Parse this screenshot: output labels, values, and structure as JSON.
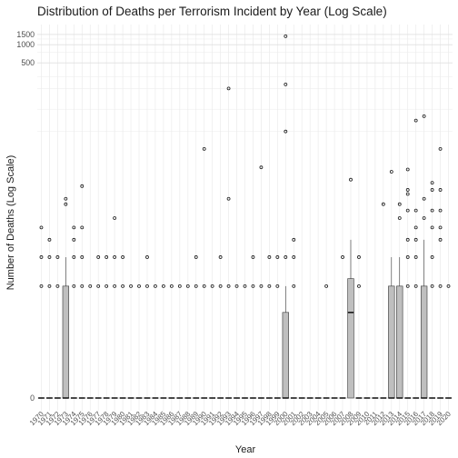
{
  "chart_data": {
    "type": "box",
    "title": "Distribution of Deaths per Terrorism Incident by Year (Log Scale)",
    "xlabel": "Year",
    "ylabel": "Number of Deaths (Log Scale)",
    "y_scale": "log1p",
    "y_ticks": [
      0,
      500,
      1000,
      1500
    ],
    "y_tick_labels": [
      "0",
      "500",
      "1000",
      "1500"
    ],
    "ylim": [
      0,
      1800
    ],
    "grid": true,
    "legend": "none",
    "colors": {
      "box_fill": "#bfbfbf",
      "outline": "#333333",
      "grid": "#ebebeb",
      "background": "#ffffff"
    },
    "categories": [
      "1970",
      "1971",
      "1972",
      "1973",
      "1974",
      "1975",
      "1976",
      "1977",
      "1978",
      "1979",
      "1980",
      "1981",
      "1982",
      "1983",
      "1984",
      "1985",
      "1986",
      "1987",
      "1988",
      "1989",
      "1990",
      "1991",
      "1992",
      "1993",
      "1994",
      "1995",
      "1996",
      "1997",
      "1998",
      "1999",
      "2000",
      "2001",
      "2002",
      "2003",
      "2004",
      "2005",
      "2006",
      "2007",
      "2008",
      "2009",
      "2010",
      "2011",
      "2012",
      "2013",
      "2014",
      "2015",
      "2016",
      "2017",
      "2018",
      "2019",
      "2020"
    ],
    "boxes": [
      {
        "x": "1970",
        "q1": 0,
        "median": 0,
        "q3": 0,
        "whisker_low": 0,
        "whisker_high": 0,
        "outliers": [
          1,
          2,
          4
        ]
      },
      {
        "x": "1971",
        "q1": 0,
        "median": 0,
        "q3": 0,
        "whisker_low": 0,
        "whisker_high": 0,
        "outliers": [
          1,
          2,
          3
        ]
      },
      {
        "x": "1972",
        "q1": 0,
        "median": 0,
        "q3": 0,
        "whisker_low": 0,
        "whisker_high": 0,
        "outliers": [
          1,
          2
        ]
      },
      {
        "x": "1973",
        "q1": 0,
        "median": 0,
        "q3": 1,
        "whisker_low": 0,
        "whisker_high": 2,
        "outliers": [
          7,
          8
        ]
      },
      {
        "x": "1974",
        "q1": 0,
        "median": 0,
        "q3": 0,
        "whisker_low": 0,
        "whisker_high": 0,
        "outliers": [
          1,
          2,
          3,
          4
        ]
      },
      {
        "x": "1975",
        "q1": 0,
        "median": 0,
        "q3": 0,
        "whisker_low": 0,
        "whisker_high": 0,
        "outliers": [
          1,
          2,
          4,
          11
        ]
      },
      {
        "x": "1976",
        "q1": 0,
        "median": 0,
        "q3": 0,
        "whisker_low": 0,
        "whisker_high": 0,
        "outliers": [
          1
        ]
      },
      {
        "x": "1977",
        "q1": 0,
        "median": 0,
        "q3": 0,
        "whisker_low": 0,
        "whisker_high": 0,
        "outliers": [
          1,
          2
        ]
      },
      {
        "x": "1978",
        "q1": 0,
        "median": 0,
        "q3": 0,
        "whisker_low": 0,
        "whisker_high": 0,
        "outliers": [
          1,
          2
        ]
      },
      {
        "x": "1979",
        "q1": 0,
        "median": 0,
        "q3": 0,
        "whisker_low": 0,
        "whisker_high": 0,
        "outliers": [
          1,
          2,
          5
        ]
      },
      {
        "x": "1980",
        "q1": 0,
        "median": 0,
        "q3": 0,
        "whisker_low": 0,
        "whisker_high": 0,
        "outliers": [
          1,
          2
        ]
      },
      {
        "x": "1981",
        "q1": 0,
        "median": 0,
        "q3": 0,
        "whisker_low": 0,
        "whisker_high": 0,
        "outliers": [
          1
        ]
      },
      {
        "x": "1982",
        "q1": 0,
        "median": 0,
        "q3": 0,
        "whisker_low": 0,
        "whisker_high": 0,
        "outliers": [
          1
        ]
      },
      {
        "x": "1983",
        "q1": 0,
        "median": 0,
        "q3": 0,
        "whisker_low": 0,
        "whisker_high": 0,
        "outliers": [
          1,
          2
        ]
      },
      {
        "x": "1984",
        "q1": 0,
        "median": 0,
        "q3": 0,
        "whisker_low": 0,
        "whisker_high": 0,
        "outliers": [
          1
        ]
      },
      {
        "x": "1985",
        "q1": 0,
        "median": 0,
        "q3": 0,
        "whisker_low": 0,
        "whisker_high": 0,
        "outliers": [
          1
        ]
      },
      {
        "x": "1986",
        "q1": 0,
        "median": 0,
        "q3": 0,
        "whisker_low": 0,
        "whisker_high": 0,
        "outliers": [
          1
        ]
      },
      {
        "x": "1987",
        "q1": 0,
        "median": 0,
        "q3": 0,
        "whisker_low": 0,
        "whisker_high": 0,
        "outliers": [
          1
        ]
      },
      {
        "x": "1988",
        "q1": 0,
        "median": 0,
        "q3": 0,
        "whisker_low": 0,
        "whisker_high": 0,
        "outliers": [
          1
        ]
      },
      {
        "x": "1989",
        "q1": 0,
        "median": 0,
        "q3": 0,
        "whisker_low": 0,
        "whisker_high": 0,
        "outliers": [
          1,
          2
        ]
      },
      {
        "x": "1990",
        "q1": 0,
        "median": 0,
        "q3": 0,
        "whisker_low": 0,
        "whisker_high": 0,
        "outliers": [
          1,
          30
        ]
      },
      {
        "x": "1991",
        "q1": 0,
        "median": 0,
        "q3": 0,
        "whisker_low": 0,
        "whisker_high": 0,
        "outliers": [
          1
        ]
      },
      {
        "x": "1992",
        "q1": 0,
        "median": 0,
        "q3": 0,
        "whisker_low": 0,
        "whisker_high": 0,
        "outliers": [
          1,
          2
        ]
      },
      {
        "x": "1993",
        "q1": 0,
        "median": 0,
        "q3": 0,
        "whisker_low": 0,
        "whisker_high": 0,
        "outliers": [
          1,
          8,
          200
        ]
      },
      {
        "x": "1994",
        "q1": 0,
        "median": 0,
        "q3": 0,
        "whisker_low": 0,
        "whisker_high": 0,
        "outliers": [
          1
        ]
      },
      {
        "x": "1995",
        "q1": 0,
        "median": 0,
        "q3": 0,
        "whisker_low": 0,
        "whisker_high": 0,
        "outliers": [
          1
        ]
      },
      {
        "x": "1996",
        "q1": 0,
        "median": 0,
        "q3": 0,
        "whisker_low": 0,
        "whisker_high": 0,
        "outliers": [
          1,
          2
        ]
      },
      {
        "x": "1997",
        "q1": 0,
        "median": 0,
        "q3": 0,
        "whisker_low": 0,
        "whisker_high": 0,
        "outliers": [
          1,
          18
        ]
      },
      {
        "x": "1998",
        "q1": 0,
        "median": 0,
        "q3": 0,
        "whisker_low": 0,
        "whisker_high": 0,
        "outliers": [
          1,
          2
        ]
      },
      {
        "x": "1999",
        "q1": 0,
        "median": 0,
        "q3": 0,
        "whisker_low": 0,
        "whisker_high": 0,
        "outliers": [
          1,
          2
        ]
      },
      {
        "x": "2000",
        "q1": 0,
        "median": 0,
        "q3": 0.5,
        "whisker_low": 0,
        "whisker_high": 1,
        "outliers": [
          2,
          50,
          230,
          1400
        ]
      },
      {
        "x": "2001",
        "q1": 0,
        "median": 0,
        "q3": 0,
        "whisker_low": 0,
        "whisker_high": 0,
        "outliers": [
          1,
          2,
          3
        ]
      },
      {
        "x": "2002",
        "q1": 0,
        "median": 0,
        "q3": 0,
        "whisker_low": 0,
        "whisker_high": 0,
        "outliers": []
      },
      {
        "x": "2003",
        "q1": 0,
        "median": 0,
        "q3": 0,
        "whisker_low": 0,
        "whisker_high": 0,
        "outliers": []
      },
      {
        "x": "2004",
        "q1": 0,
        "median": 0,
        "q3": 0,
        "whisker_low": 0,
        "whisker_high": 0,
        "outliers": []
      },
      {
        "x": "2005",
        "q1": 0,
        "median": 0,
        "q3": 0,
        "whisker_low": 0,
        "whisker_high": 0,
        "outliers": [
          1
        ]
      },
      {
        "x": "2006",
        "q1": 0,
        "median": 0,
        "q3": 0,
        "whisker_low": 0,
        "whisker_high": 0,
        "outliers": []
      },
      {
        "x": "2007",
        "q1": 0,
        "median": 0,
        "q3": 0,
        "whisker_low": 0,
        "whisker_high": 0,
        "outliers": [
          2
        ]
      },
      {
        "x": "2008",
        "q1": 0,
        "median": 0.5,
        "q3": 1.2,
        "whisker_low": 0,
        "whisker_high": 3,
        "outliers": [
          13
        ]
      },
      {
        "x": "2009",
        "q1": 0,
        "median": 0,
        "q3": 0,
        "whisker_low": 0,
        "whisker_high": 0,
        "outliers": [
          1,
          2
        ]
      },
      {
        "x": "2010",
        "q1": 0,
        "median": 0,
        "q3": 0,
        "whisker_low": 0,
        "whisker_high": 0,
        "outliers": []
      },
      {
        "x": "2011",
        "q1": 0,
        "median": 0,
        "q3": 0,
        "whisker_low": 0,
        "whisker_high": 0,
        "outliers": []
      },
      {
        "x": "2012",
        "q1": 0,
        "median": 0,
        "q3": 0,
        "whisker_low": 0,
        "whisker_high": 0,
        "outliers": [
          7
        ]
      },
      {
        "x": "2013",
        "q1": 0,
        "median": 0,
        "q3": 1,
        "whisker_low": 0,
        "whisker_high": 2,
        "outliers": [
          16
        ]
      },
      {
        "x": "2014",
        "q1": 0,
        "median": 0,
        "q3": 1,
        "whisker_low": 0,
        "whisker_high": 2,
        "outliers": [
          5,
          7
        ]
      },
      {
        "x": "2015",
        "q1": 0,
        "median": 0,
        "q3": 0,
        "whisker_low": 0,
        "whisker_high": 0,
        "outliers": [
          1,
          2,
          3,
          6,
          9,
          10,
          17
        ]
      },
      {
        "x": "2016",
        "q1": 0,
        "median": 0,
        "q3": 0,
        "whisker_low": 0,
        "whisker_high": 0,
        "outliers": [
          1,
          2,
          3,
          4,
          6,
          70
        ]
      },
      {
        "x": "2017",
        "q1": 0,
        "median": 0,
        "q3": 1,
        "whisker_low": 0,
        "whisker_high": 3,
        "outliers": [
          5,
          8,
          80
        ]
      },
      {
        "x": "2018",
        "q1": 0,
        "median": 0,
        "q3": 0,
        "whisker_low": 0,
        "whisker_high": 0,
        "outliers": [
          1,
          2,
          4,
          6,
          10,
          12
        ]
      },
      {
        "x": "2019",
        "q1": 0,
        "median": 0,
        "q3": 0,
        "whisker_low": 0,
        "whisker_high": 0,
        "outliers": [
          1,
          3,
          4,
          6,
          10,
          30
        ]
      },
      {
        "x": "2020",
        "q1": 0,
        "median": 0,
        "q3": 0,
        "whisker_low": 0,
        "whisker_high": 0,
        "outliers": [
          1
        ]
      }
    ]
  }
}
